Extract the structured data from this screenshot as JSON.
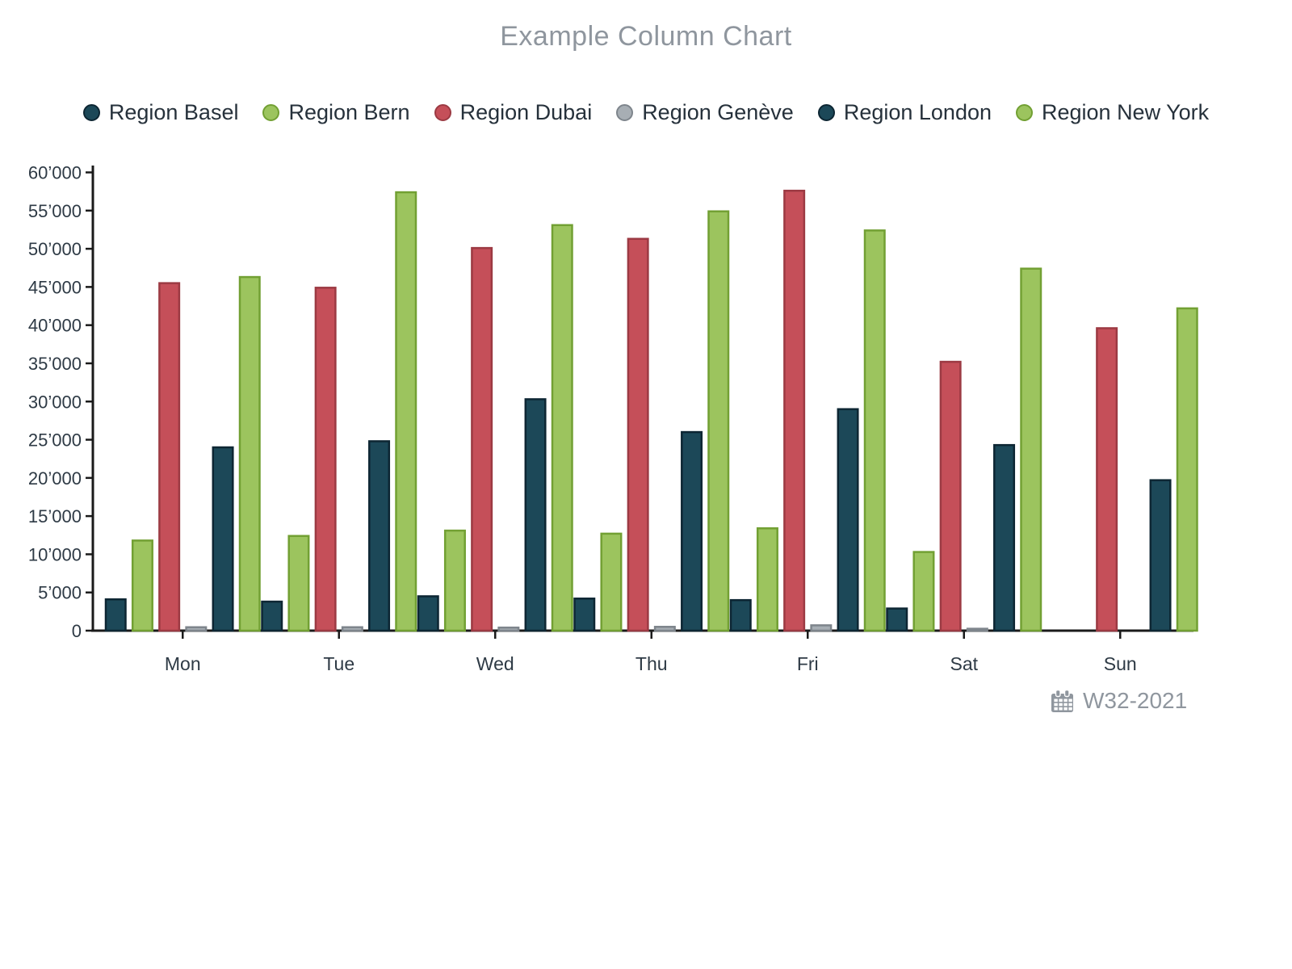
{
  "title": "Example Column Chart",
  "footer": {
    "week_label": "W32-2021"
  },
  "chart_data": {
    "type": "bar",
    "title": "Example Column Chart",
    "categories": [
      "Mon",
      "Tue",
      "Wed",
      "Thu",
      "Fri",
      "Sat",
      "Sun"
    ],
    "series": [
      {
        "name": "Region Basel",
        "color": "#1c4858",
        "border": "#0d2633",
        "values": [
          4100,
          3800,
          4500,
          4200,
          4000,
          2900,
          0
        ]
      },
      {
        "name": "Region Bern",
        "color": "#9cc45e",
        "border": "#72a033",
        "values": [
          11800,
          12400,
          13100,
          12700,
          13400,
          10300,
          0
        ]
      },
      {
        "name": "Region Dubai",
        "color": "#c54f59",
        "border": "#9c3a43",
        "values": [
          45500,
          44900,
          50100,
          51300,
          57600,
          35200,
          39600
        ]
      },
      {
        "name": "Region Genève",
        "color": "#a7aeb4",
        "border": "#7e858c",
        "values": [
          450,
          450,
          400,
          500,
          700,
          250,
          0
        ]
      },
      {
        "name": "Region London",
        "color": "#1c4858",
        "border": "#0d2633",
        "values": [
          24000,
          24800,
          30300,
          26000,
          29000,
          24300,
          19700
        ]
      },
      {
        "name": "Region New York",
        "color": "#9cc45e",
        "border": "#72a033",
        "values": [
          46300,
          57400,
          53100,
          54900,
          52400,
          47400,
          42200
        ]
      }
    ],
    "xlabel": "",
    "ylabel": "",
    "ylim": [
      0,
      60000
    ],
    "ytick_step": 5000,
    "ytick_labels": [
      "0",
      "5’000",
      "10’000",
      "15’000",
      "20’000",
      "25’000",
      "30’000",
      "35’000",
      "40’000",
      "45’000",
      "50’000",
      "55’000",
      "60’000"
    ],
    "grid": false,
    "legend_position": "top",
    "footer_label": "W32-2021"
  }
}
